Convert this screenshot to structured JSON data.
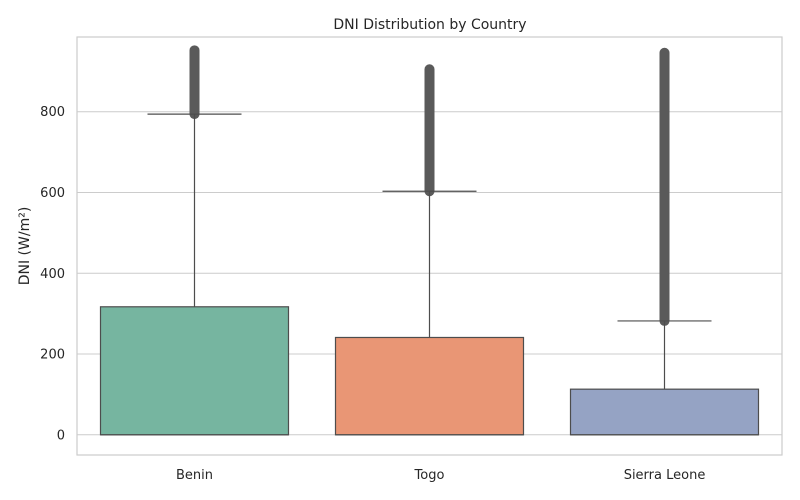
{
  "chart_data": {
    "type": "box",
    "title": "DNI Distribution by Country",
    "xlabel": "",
    "ylabel": "DNI (W/m²)",
    "ylim": [
      -50,
      985
    ],
    "yticks": [
      0,
      200,
      400,
      600,
      800
    ],
    "grid": true,
    "categories": [
      "Benin",
      "Togo",
      "Sierra Leone"
    ],
    "series": [
      {
        "category": "Benin",
        "min": 0,
        "q1": 0,
        "median": 0,
        "q3": 317,
        "whisker_high": 794,
        "outliers_from": 794,
        "outliers_to": 952,
        "color": "#76b5a0"
      },
      {
        "category": "Togo",
        "min": 0,
        "q1": 0,
        "median": 0,
        "q3": 241,
        "whisker_high": 603,
        "outliers_from": 603,
        "outliers_to": 905,
        "color": "#e99675"
      },
      {
        "category": "Sierra Leone",
        "min": 0,
        "q1": 0,
        "median": 0,
        "q3": 113,
        "whisker_high": 282,
        "outliers_from": 282,
        "outliers_to": 946,
        "color": "#95a3c4"
      }
    ]
  }
}
